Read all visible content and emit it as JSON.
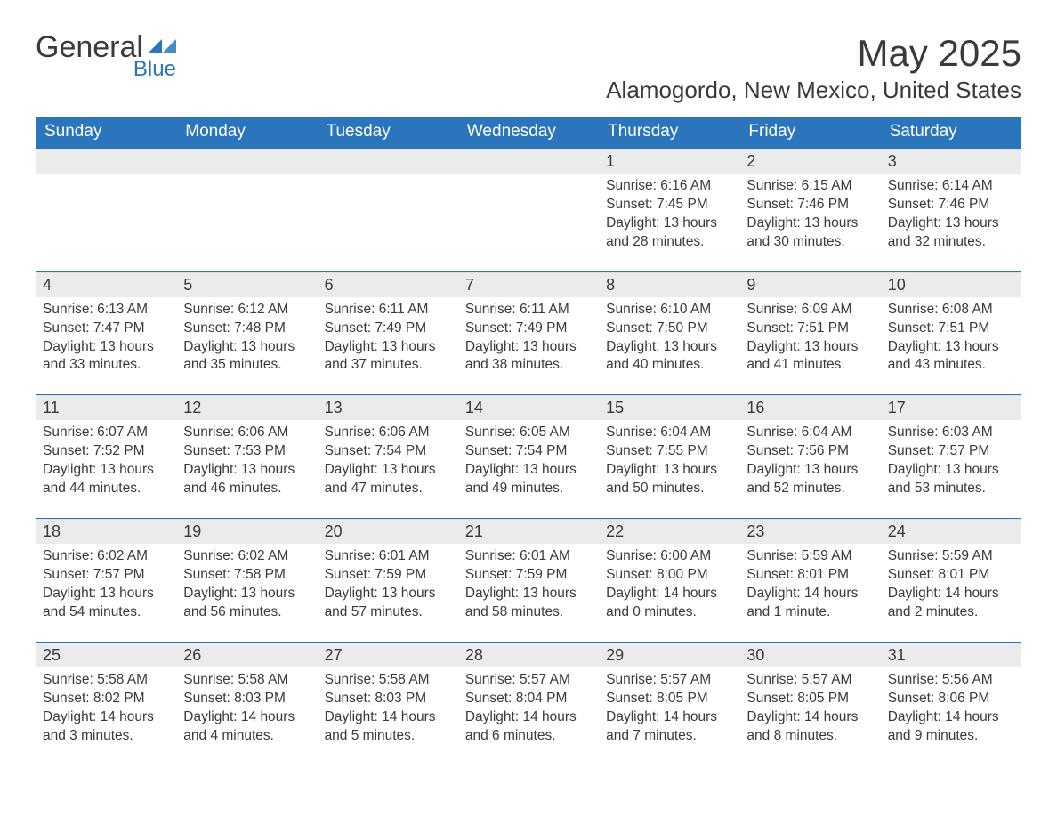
{
  "brand": {
    "name_part1": "General",
    "name_part2": "Blue",
    "icon_color": "#2a75bb",
    "text_color": "#3a3a3a"
  },
  "title": "May 2025",
  "location": "Alamogordo, New Mexico, United States",
  "colors": {
    "header_bg": "#2a75bb",
    "header_text": "#ffffff",
    "daynum_bg": "#ebebeb",
    "body_text": "#3a3a3a",
    "page_bg": "#ffffff",
    "week_sep": "#2a75bb"
  },
  "typography": {
    "title_fontsize": 42,
    "location_fontsize": 26,
    "dayheader_fontsize": 19,
    "daynum_fontsize": 18,
    "content_fontsize": 15.5,
    "font_family": "Segoe UI, Arial, sans-serif"
  },
  "day_headers": [
    "Sunday",
    "Monday",
    "Tuesday",
    "Wednesday",
    "Thursday",
    "Friday",
    "Saturday"
  ],
  "weeks": [
    [
      null,
      null,
      null,
      null,
      {
        "d": "1",
        "sunrise": "6:16 AM",
        "sunset": "7:45 PM",
        "daylight": "13 hours and 28 minutes."
      },
      {
        "d": "2",
        "sunrise": "6:15 AM",
        "sunset": "7:46 PM",
        "daylight": "13 hours and 30 minutes."
      },
      {
        "d": "3",
        "sunrise": "6:14 AM",
        "sunset": "7:46 PM",
        "daylight": "13 hours and 32 minutes."
      }
    ],
    [
      {
        "d": "4",
        "sunrise": "6:13 AM",
        "sunset": "7:47 PM",
        "daylight": "13 hours and 33 minutes."
      },
      {
        "d": "5",
        "sunrise": "6:12 AM",
        "sunset": "7:48 PM",
        "daylight": "13 hours and 35 minutes."
      },
      {
        "d": "6",
        "sunrise": "6:11 AM",
        "sunset": "7:49 PM",
        "daylight": "13 hours and 37 minutes."
      },
      {
        "d": "7",
        "sunrise": "6:11 AM",
        "sunset": "7:49 PM",
        "daylight": "13 hours and 38 minutes."
      },
      {
        "d": "8",
        "sunrise": "6:10 AM",
        "sunset": "7:50 PM",
        "daylight": "13 hours and 40 minutes."
      },
      {
        "d": "9",
        "sunrise": "6:09 AM",
        "sunset": "7:51 PM",
        "daylight": "13 hours and 41 minutes."
      },
      {
        "d": "10",
        "sunrise": "6:08 AM",
        "sunset": "7:51 PM",
        "daylight": "13 hours and 43 minutes."
      }
    ],
    [
      {
        "d": "11",
        "sunrise": "6:07 AM",
        "sunset": "7:52 PM",
        "daylight": "13 hours and 44 minutes."
      },
      {
        "d": "12",
        "sunrise": "6:06 AM",
        "sunset": "7:53 PM",
        "daylight": "13 hours and 46 minutes."
      },
      {
        "d": "13",
        "sunrise": "6:06 AM",
        "sunset": "7:54 PM",
        "daylight": "13 hours and 47 minutes."
      },
      {
        "d": "14",
        "sunrise": "6:05 AM",
        "sunset": "7:54 PM",
        "daylight": "13 hours and 49 minutes."
      },
      {
        "d": "15",
        "sunrise": "6:04 AM",
        "sunset": "7:55 PM",
        "daylight": "13 hours and 50 minutes."
      },
      {
        "d": "16",
        "sunrise": "6:04 AM",
        "sunset": "7:56 PM",
        "daylight": "13 hours and 52 minutes."
      },
      {
        "d": "17",
        "sunrise": "6:03 AM",
        "sunset": "7:57 PM",
        "daylight": "13 hours and 53 minutes."
      }
    ],
    [
      {
        "d": "18",
        "sunrise": "6:02 AM",
        "sunset": "7:57 PM",
        "daylight": "13 hours and 54 minutes."
      },
      {
        "d": "19",
        "sunrise": "6:02 AM",
        "sunset": "7:58 PM",
        "daylight": "13 hours and 56 minutes."
      },
      {
        "d": "20",
        "sunrise": "6:01 AM",
        "sunset": "7:59 PM",
        "daylight": "13 hours and 57 minutes."
      },
      {
        "d": "21",
        "sunrise": "6:01 AM",
        "sunset": "7:59 PM",
        "daylight": "13 hours and 58 minutes."
      },
      {
        "d": "22",
        "sunrise": "6:00 AM",
        "sunset": "8:00 PM",
        "daylight": "14 hours and 0 minutes."
      },
      {
        "d": "23",
        "sunrise": "5:59 AM",
        "sunset": "8:01 PM",
        "daylight": "14 hours and 1 minute."
      },
      {
        "d": "24",
        "sunrise": "5:59 AM",
        "sunset": "8:01 PM",
        "daylight": "14 hours and 2 minutes."
      }
    ],
    [
      {
        "d": "25",
        "sunrise": "5:58 AM",
        "sunset": "8:02 PM",
        "daylight": "14 hours and 3 minutes."
      },
      {
        "d": "26",
        "sunrise": "5:58 AM",
        "sunset": "8:03 PM",
        "daylight": "14 hours and 4 minutes."
      },
      {
        "d": "27",
        "sunrise": "5:58 AM",
        "sunset": "8:03 PM",
        "daylight": "14 hours and 5 minutes."
      },
      {
        "d": "28",
        "sunrise": "5:57 AM",
        "sunset": "8:04 PM",
        "daylight": "14 hours and 6 minutes."
      },
      {
        "d": "29",
        "sunrise": "5:57 AM",
        "sunset": "8:05 PM",
        "daylight": "14 hours and 7 minutes."
      },
      {
        "d": "30",
        "sunrise": "5:57 AM",
        "sunset": "8:05 PM",
        "daylight": "14 hours and 8 minutes."
      },
      {
        "d": "31",
        "sunrise": "5:56 AM",
        "sunset": "8:06 PM",
        "daylight": "14 hours and 9 minutes."
      }
    ]
  ],
  "labels": {
    "sunrise": "Sunrise: ",
    "sunset": "Sunset: ",
    "daylight": "Daylight: "
  }
}
